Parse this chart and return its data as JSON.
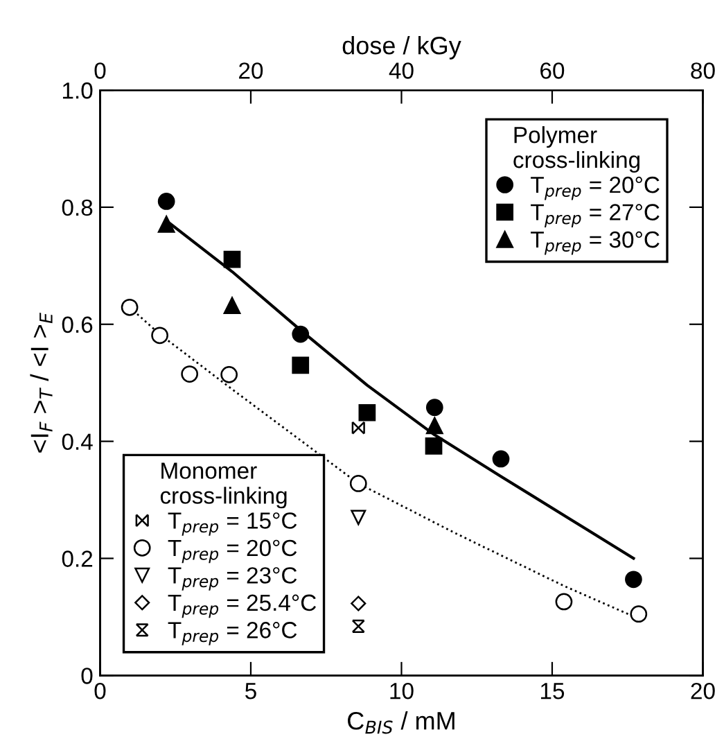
{
  "chart_data": [
    {
      "type": "scatter",
      "xlabel": "C$_{BIS}$ / mM",
      "ylabel": "<I$_{F}$ >$_{T}$ / <I >$_{E}$",
      "x2label": "dose / kGy",
      "xlim": [
        0,
        20
      ],
      "xticks": [
        0,
        5,
        10,
        15,
        20
      ],
      "x2lim": [
        0,
        80
      ],
      "x2ticks": [
        0,
        20,
        40,
        60,
        80
      ],
      "ylim": [
        0,
        1.0
      ],
      "yticks": [
        0,
        {
          "value": 0.2,
          "label": "0.2"
        },
        {
          "value": 0.4,
          "label": "0.4"
        },
        {
          "value": 0.6,
          "label": "0.6"
        },
        {
          "value": 0.8,
          "label": "0.8"
        },
        {
          "value": 1.0,
          "label": "1.0"
        }
      ],
      "legend_title": "Polymer\ncross-linking",
      "legend": "top right",
      "series": [
        {
          "name": "T$_{prep}$ = 20°C",
          "marker": "circle",
          "color": "#000000",
          "x": [
            2.2,
            6.65,
            11.1,
            13.3,
            17.7
          ],
          "values": [
            0.81,
            0.583,
            0.458,
            0.37,
            0.164
          ]
        },
        {
          "name": "T$_{prep}$ = 27°C",
          "marker": "square",
          "color": "#000000",
          "x": [
            4.38,
            6.65,
            8.86,
            11.07
          ],
          "values": [
            0.711,
            0.53,
            0.449,
            0.392
          ]
        },
        {
          "name": "T$_{prep}$ = 30°C",
          "marker": "triangle",
          "color": "#000000",
          "x": [
            2.2,
            4.38,
            11.1
          ],
          "values": [
            0.771,
            0.632,
            0.427
          ]
        },
        {
          "type": "line",
          "line_style": "solid",
          "color": "#000000",
          "x": [
            2.2,
            4.38,
            6.65,
            8.86,
            11.1,
            13.3,
            15.6,
            17.7
          ],
          "values": [
            0.777,
            0.69,
            0.59,
            0.496,
            0.411,
            0.34,
            0.267,
            0.2
          ]
        }
      ]
    },
    {
      "type": "scatter",
      "xlim": [
        0,
        20
      ],
      "ylim": [
        0,
        1.0
      ],
      "tick_labels": false,
      "legend_title": "Monomer\ncross-linking",
      "legend": "bottom left",
      "series": [
        {
          "name": "T$_{prep}$ = 15°C",
          "marker": "cross",
          "color": "#000000",
          "x": [
            8.57
          ],
          "values": [
            0.423
          ]
        },
        {
          "name": "T$_{prep}$ = 20°C",
          "marker": "circle",
          "color": "#000000",
          "x": [
            0.98,
            1.98,
            2.97,
            4.28,
            8.57,
            15.39,
            17.87
          ],
          "values": [
            0.629,
            0.581,
            0.515,
            0.514,
            0.328,
            0.126,
            0.105
          ]
        },
        {
          "name": "T$_{prep}$ = 23°C",
          "marker": "triangle",
          "color": "#000000",
          "x": [
            8.57
          ],
          "values": [
            0.27
          ]
        },
        {
          "name": "T$_{prep}$ = 25.4°C",
          "marker": "diamond",
          "color": "#000000",
          "x": [
            8.57
          ],
          "values": [
            0.123
          ]
        },
        {
          "name": "T$_{prep}$ = 26°C",
          "color": "#000000",
          "x": [
            8.57
          ],
          "values": [
            0.084
          ]
        },
        {
          "type": "line",
          "line_style": "dotted",
          "color": "#000000",
          "x": [
            0.98,
            1.98,
            4.38,
            8.57,
            11.75,
            15.39,
            17.87
          ],
          "values": [
            0.629,
            0.583,
            0.489,
            0.328,
            0.244,
            0.153,
            0.097
          ]
        }
      ]
    }
  ]
}
